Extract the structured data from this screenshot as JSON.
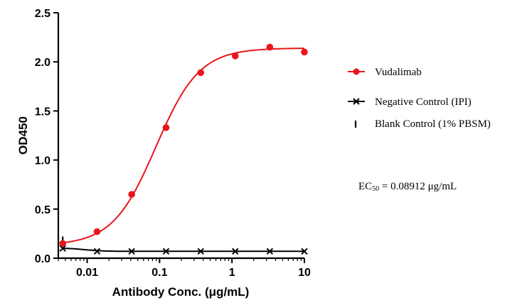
{
  "chart_data": {
    "type": "scatter",
    "xscale": "log",
    "xlabel": "Antibody Conc. (μg/mL)",
    "ylabel": "OD450",
    "xlim": [
      0.004,
      10
    ],
    "ylim": [
      0,
      2.5
    ],
    "x_ticks": [
      0.01,
      0.1,
      1,
      10
    ],
    "x_tick_labels": [
      "0.01",
      "0.1",
      "1",
      "10"
    ],
    "y_ticks": [
      0,
      0.5,
      1,
      1.5,
      2,
      2.5
    ],
    "y_tick_labels": [
      "0.0",
      "0.5",
      "1.0",
      "1.5",
      "2.0",
      "2.5"
    ],
    "grid": false,
    "legend_position": "right",
    "series": [
      {
        "name": "Vudalimab",
        "marker": "circle",
        "color": "#e8151b",
        "fit": "sigmoid",
        "x": [
          0.0046,
          0.0137,
          0.0412,
          0.123,
          0.37,
          1.11,
          3.33,
          10
        ],
        "values": [
          0.15,
          0.27,
          0.65,
          1.33,
          1.89,
          2.06,
          2.15,
          2.1
        ]
      },
      {
        "name": "Negative Control (IPI)",
        "marker": "x",
        "color": "#000000",
        "fit": "curve",
        "x": [
          0.0046,
          0.0137,
          0.0412,
          0.123,
          0.37,
          1.11,
          3.33,
          10
        ],
        "values": [
          0.1,
          0.07,
          0.07,
          0.07,
          0.07,
          0.07,
          0.07,
          0.07
        ]
      },
      {
        "name": "Blank Control (1% PBSM)",
        "marker": "tick",
        "color": "#000000",
        "x": [
          0.0046
        ],
        "values": [
          0.17
        ]
      }
    ],
    "annotation": {
      "label": "EC",
      "subscript": "50",
      "text": " = 0.08912 μg/mL"
    }
  }
}
